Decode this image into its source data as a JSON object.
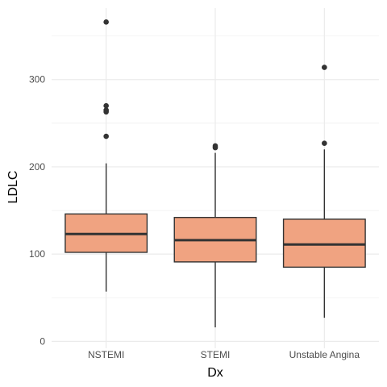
{
  "chart_data": {
    "type": "box",
    "xlabel": "Dx",
    "ylabel": "LDLC",
    "categories": [
      "NSTEMI",
      "STEMI",
      "Unstable Angina"
    ],
    "boxes": [
      {
        "category": "NSTEMI",
        "whisker_low": 57,
        "q1": 102,
        "median": 123,
        "q3": 146,
        "whisker_high": 204,
        "outliers": [
          235,
          263,
          265,
          270,
          366
        ]
      },
      {
        "category": "STEMI",
        "whisker_low": 16,
        "q1": 91,
        "median": 116,
        "q3": 142,
        "whisker_high": 216,
        "outliers": [
          222,
          224
        ]
      },
      {
        "category": "Unstable Angina",
        "whisker_low": 27,
        "q1": 85,
        "median": 111,
        "q3": 140,
        "whisker_high": 220,
        "outliers": [
          227,
          314
        ]
      }
    ],
    "y_ticks": [
      0,
      100,
      200,
      300
    ],
    "ylim": [
      -8,
      382
    ],
    "grid": true,
    "legend": "none",
    "fill_color": "#f0a381",
    "line_color": "#333333"
  }
}
